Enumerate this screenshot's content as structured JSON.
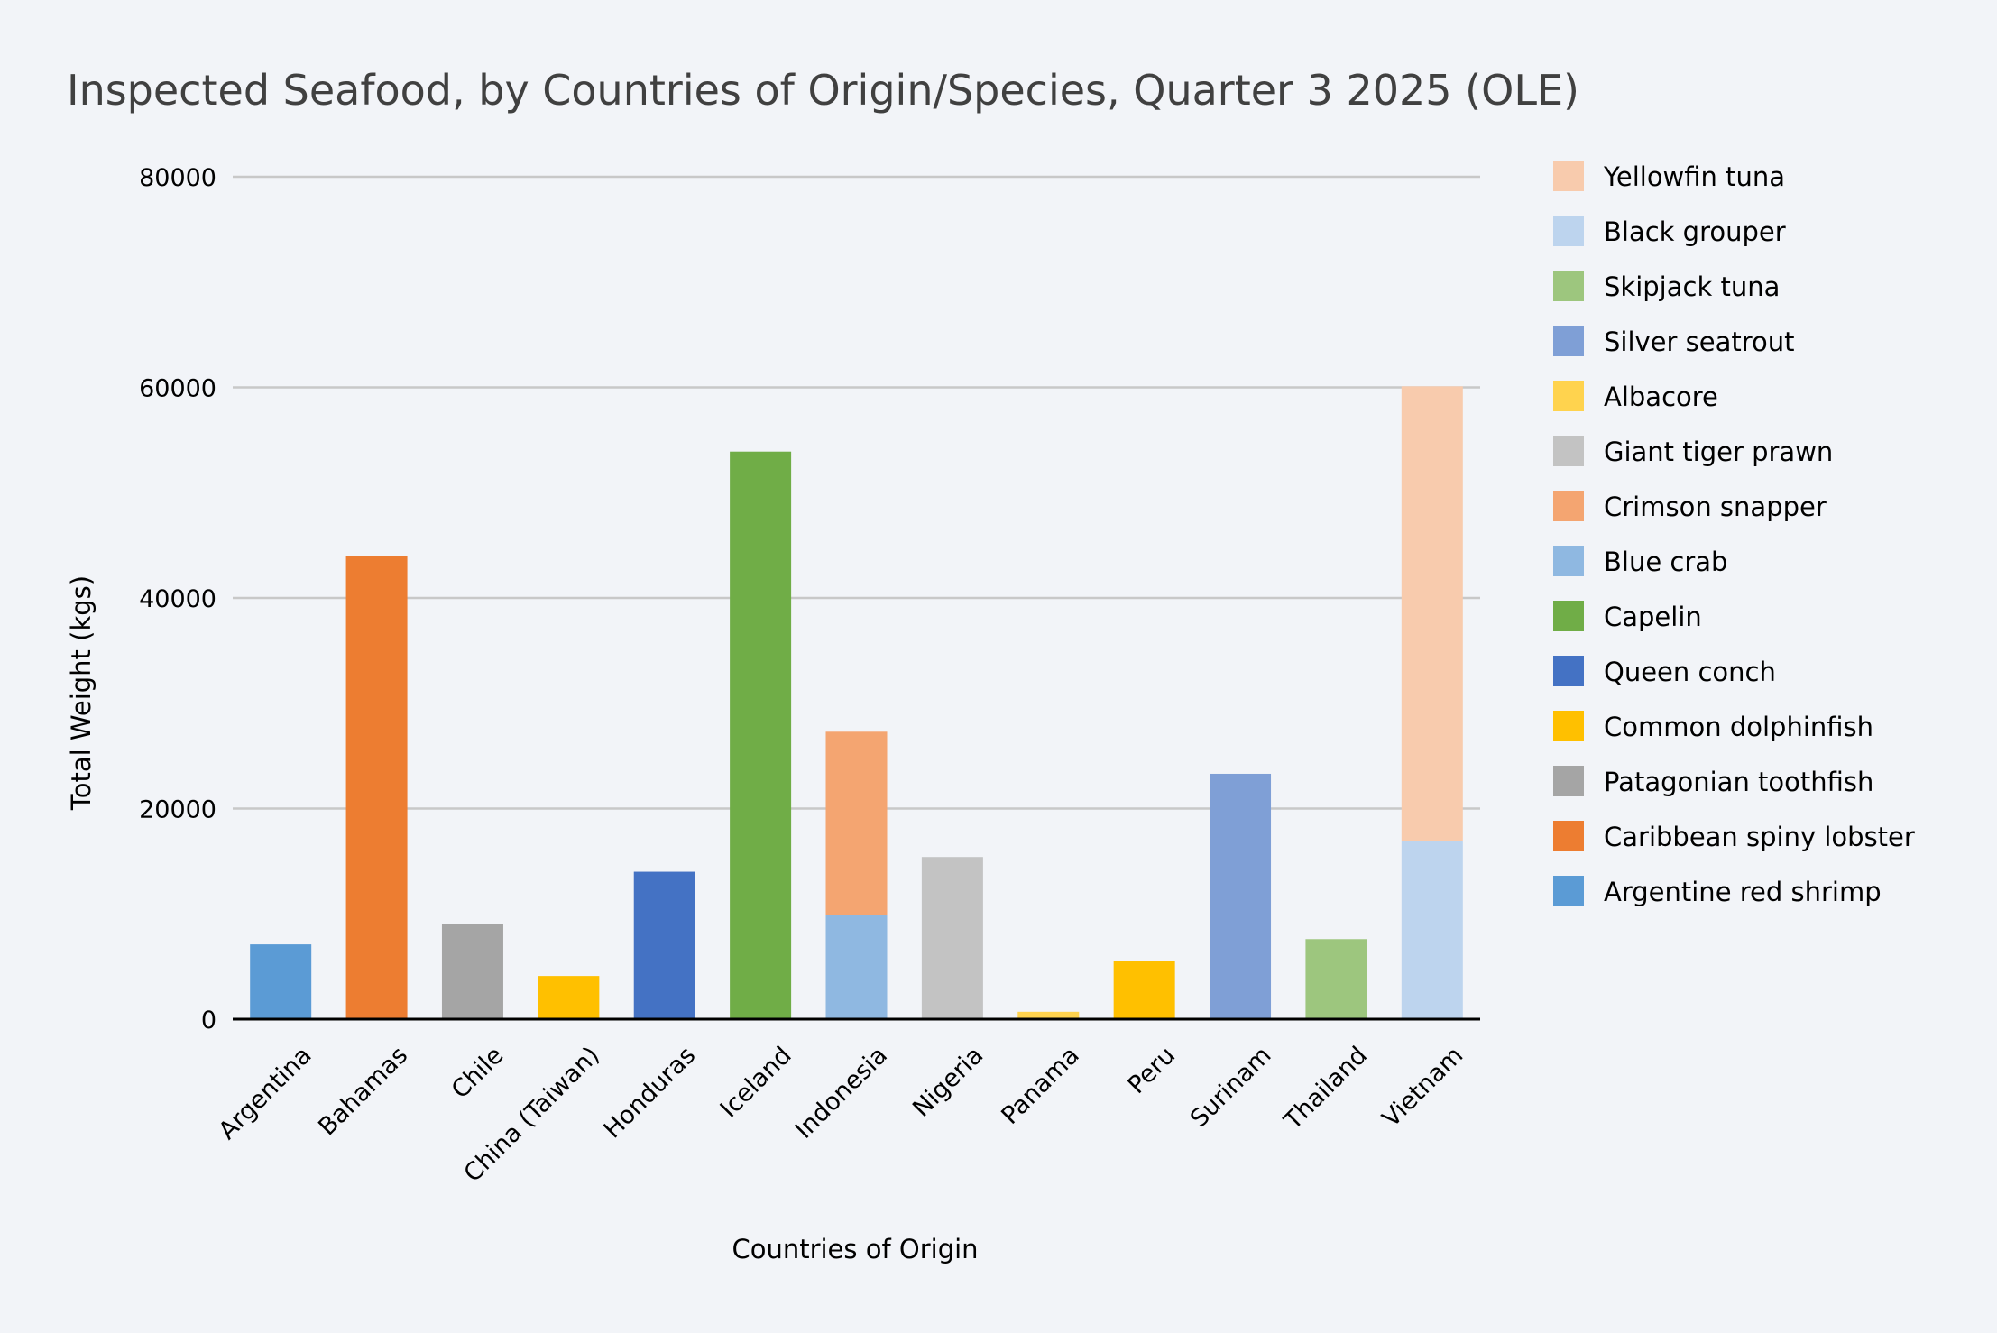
{
  "chart_data": {
    "type": "bar",
    "stacked": true,
    "title": "Inspected Seafood, by Countries of Origin/Species, Quarter 3 2025 (OLE)",
    "xlabel": "Countries of Origin",
    "ylabel": "Total Weight (kgs)",
    "ylim": [
      0,
      80000
    ],
    "yticks": [
      "0",
      "20000",
      "40000",
      "60000",
      "80000"
    ],
    "grid": true,
    "legend_position": "right",
    "categories": [
      "Argentina",
      "Bahamas",
      "Chile",
      "China (Taiwan)",
      "Honduras",
      "Iceland",
      "Indonesia",
      "Nigeria",
      "Panama",
      "Peru",
      "Surinam",
      "Thailand",
      "Vietnam"
    ],
    "series": [
      {
        "name": "Argentine red shrimp",
        "color": "#5b9bd5",
        "values": [
          7100,
          0,
          0,
          0,
          0,
          0,
          0,
          0,
          0,
          0,
          0,
          0,
          0
        ]
      },
      {
        "name": "Caribbean spiny lobster",
        "color": "#ed7d31",
        "values": [
          0,
          44000,
          0,
          0,
          0,
          0,
          0,
          0,
          0,
          0,
          0,
          0,
          0
        ]
      },
      {
        "name": "Patagonian toothfish",
        "color": "#a5a5a5",
        "values": [
          0,
          0,
          9000,
          0,
          0,
          0,
          0,
          0,
          0,
          0,
          0,
          0,
          0
        ]
      },
      {
        "name": "Common dolphinfish",
        "color": "#ffc000",
        "values": [
          0,
          0,
          0,
          4100,
          0,
          0,
          0,
          0,
          0,
          5500,
          0,
          0,
          0
        ]
      },
      {
        "name": "Queen conch",
        "color": "#4472c4",
        "values": [
          0,
          0,
          0,
          0,
          14000,
          0,
          0,
          0,
          0,
          0,
          0,
          0,
          0
        ]
      },
      {
        "name": "Capelin",
        "color": "#70ad47",
        "values": [
          0,
          0,
          0,
          0,
          0,
          53900,
          0,
          0,
          0,
          0,
          0,
          0,
          0
        ]
      },
      {
        "name": "Blue crab",
        "color": "#8fb8e1",
        "values": [
          0,
          0,
          0,
          0,
          0,
          0,
          9900,
          0,
          0,
          0,
          0,
          0,
          0
        ]
      },
      {
        "name": "Crimson snapper",
        "color": "#f4a571",
        "values": [
          0,
          0,
          0,
          0,
          0,
          0,
          17400,
          0,
          0,
          0,
          0,
          0,
          0
        ]
      },
      {
        "name": "Giant tiger prawn",
        "color": "#c3c3c3",
        "values": [
          0,
          0,
          0,
          0,
          0,
          0,
          0,
          15400,
          0,
          0,
          0,
          0,
          0
        ]
      },
      {
        "name": "Albacore",
        "color": "#ffd34e",
        "values": [
          0,
          0,
          0,
          0,
          0,
          0,
          0,
          0,
          700,
          0,
          0,
          0,
          0
        ]
      },
      {
        "name": "Silver seatrout",
        "color": "#7f9fd6",
        "values": [
          0,
          0,
          0,
          0,
          0,
          0,
          0,
          0,
          0,
          0,
          23300,
          0,
          0
        ]
      },
      {
        "name": "Skipjack tuna",
        "color": "#9dc67e",
        "values": [
          0,
          0,
          0,
          0,
          0,
          0,
          0,
          0,
          0,
          0,
          0,
          7600,
          0
        ]
      },
      {
        "name": "Black grouper",
        "color": "#bdd4ee",
        "values": [
          0,
          0,
          0,
          0,
          0,
          0,
          0,
          0,
          0,
          0,
          0,
          0,
          16900
        ]
      },
      {
        "name": "Yellowfin tuna",
        "color": "#f8cbad",
        "values": [
          0,
          0,
          0,
          0,
          0,
          0,
          0,
          0,
          0,
          0,
          0,
          0,
          43200
        ]
      }
    ],
    "legend_order": [
      "Yellowfin tuna",
      "Black grouper",
      "Skipjack tuna",
      "Silver seatrout",
      "Albacore",
      "Giant tiger prawn",
      "Crimson snapper",
      "Blue crab",
      "Capelin",
      "Queen conch",
      "Common dolphinfish",
      "Patagonian toothfish",
      "Caribbean spiny lobster",
      "Argentine red shrimp"
    ]
  }
}
